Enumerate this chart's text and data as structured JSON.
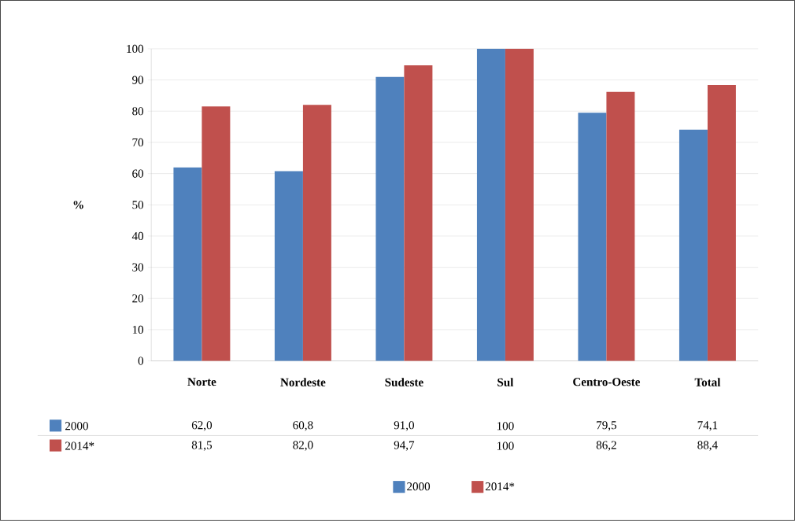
{
  "chart_data": {
    "type": "bar",
    "ylabel": "%",
    "categories": [
      "Norte",
      "Nordeste",
      "Sudeste",
      "Sul",
      "Centro-Oeste",
      "Total"
    ],
    "series": [
      {
        "name": "2000",
        "color": "#4f81bd",
        "values": [
          62.0,
          60.8,
          91.0,
          100,
          79.5,
          74.1
        ],
        "value_labels": [
          "62,0",
          "60,8",
          "91,0",
          "100",
          "79,5",
          "74,1"
        ]
      },
      {
        "name": "2014*",
        "color": "#c0504d",
        "values": [
          81.5,
          82.0,
          94.7,
          100,
          86.2,
          88.4
        ],
        "value_labels": [
          "81,5",
          "82,0",
          "94,7",
          "100",
          "86,2",
          "88,4"
        ]
      }
    ],
    "ylim": [
      0,
      100
    ],
    "yticks": [
      0,
      10,
      20,
      30,
      40,
      50,
      60,
      70,
      80,
      90,
      100
    ],
    "grid": "y",
    "legend": "bottom"
  }
}
